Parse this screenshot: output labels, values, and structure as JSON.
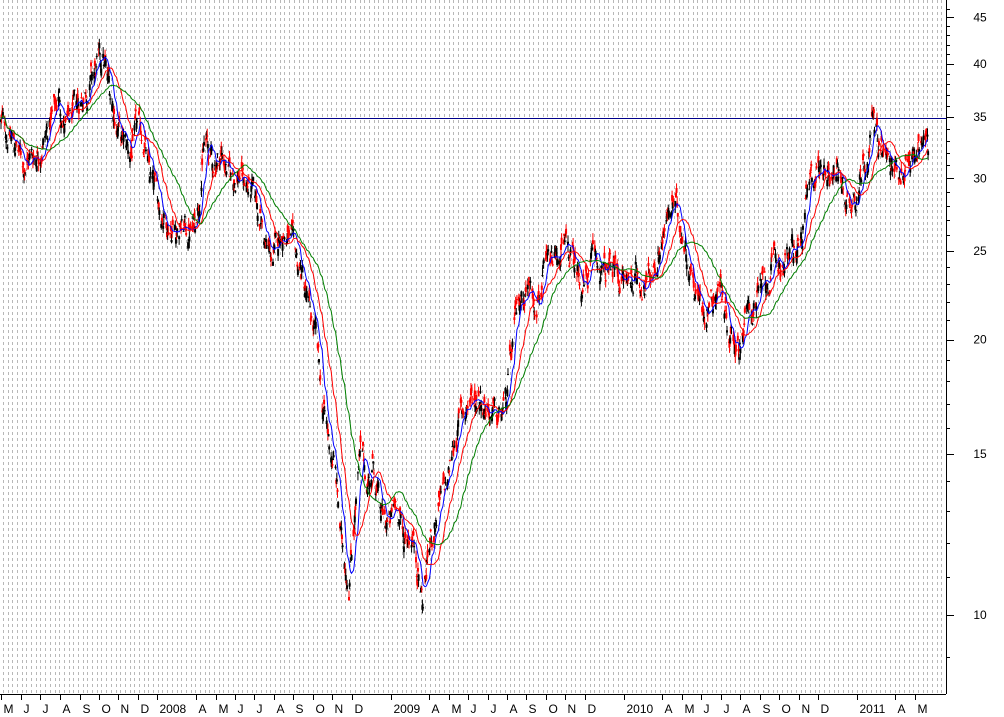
{
  "chart_data": {
    "type": "line",
    "title": "",
    "xlabel": "",
    "ylabel": "",
    "y_scale": "log",
    "ylim": [
      8.2,
      47
    ],
    "yticks": [
      10,
      15,
      20,
      25,
      30,
      35,
      40,
      45
    ],
    "x_range": [
      "2007-05-01",
      "2011-05-20"
    ],
    "grid": {
      "vertical": "dashed-gray",
      "horizontal": false
    },
    "reference_line": {
      "value": 34.9,
      "color": "#00008b"
    },
    "x_tick_labels": [
      {
        "date": "2007-05-01",
        "label": "M"
      },
      {
        "date": "2007-06-01",
        "label": "J"
      },
      {
        "date": "2007-07-01",
        "label": "J"
      },
      {
        "date": "2007-08-01",
        "label": "A"
      },
      {
        "date": "2007-09-01",
        "label": "S"
      },
      {
        "date": "2007-10-01",
        "label": "O"
      },
      {
        "date": "2007-11-01",
        "label": "N"
      },
      {
        "date": "2007-12-01",
        "label": "D"
      },
      {
        "date": "2008-01-01",
        "label": "2008"
      },
      {
        "date": "2008-03-01",
        "label": "A"
      },
      {
        "date": "2008-04-01",
        "label": "M"
      },
      {
        "date": "2008-05-01",
        "label": "J"
      },
      {
        "date": "2008-06-01",
        "label": "J"
      },
      {
        "date": "2008-07-01",
        "label": "A"
      },
      {
        "date": "2008-08-01",
        "label": "S"
      },
      {
        "date": "2008-09-01",
        "label": "O"
      },
      {
        "date": "2008-10-01",
        "label": "N"
      },
      {
        "date": "2008-11-01",
        "label": "D"
      },
      {
        "date": "2009-01-01",
        "label": "2009"
      },
      {
        "date": "2009-03-01",
        "label": "A"
      },
      {
        "date": "2009-04-01",
        "label": "M"
      },
      {
        "date": "2009-05-01",
        "label": "J"
      },
      {
        "date": "2009-06-01",
        "label": "J"
      },
      {
        "date": "2009-07-01",
        "label": "A"
      },
      {
        "date": "2009-08-01",
        "label": "S"
      },
      {
        "date": "2009-09-01",
        "label": "O"
      },
      {
        "date": "2009-10-01",
        "label": "N"
      },
      {
        "date": "2009-11-01",
        "label": "D"
      },
      {
        "date": "2010-01-01",
        "label": "2010"
      },
      {
        "date": "2010-03-01",
        "label": "A"
      },
      {
        "date": "2010-04-01",
        "label": "M"
      },
      {
        "date": "2010-05-01",
        "label": "J"
      },
      {
        "date": "2010-06-01",
        "label": "J"
      },
      {
        "date": "2010-07-01",
        "label": "A"
      },
      {
        "date": "2010-08-01",
        "label": "S"
      },
      {
        "date": "2010-09-01",
        "label": "O"
      },
      {
        "date": "2010-10-01",
        "label": "N"
      },
      {
        "date": "2010-11-01",
        "label": "D"
      },
      {
        "date": "2011-01-01",
        "label": "2011"
      },
      {
        "date": "2011-03-01",
        "label": "A"
      },
      {
        "date": "2011-04-01",
        "label": "M"
      }
    ],
    "price_path": [
      [
        "2007-05-01",
        34.5
      ],
      [
        "2007-05-20",
        33.0
      ],
      [
        "2007-06-05",
        31.2
      ],
      [
        "2007-06-25",
        32.0
      ],
      [
        "2007-07-15",
        34.0
      ],
      [
        "2007-07-31",
        37.0
      ],
      [
        "2007-08-10",
        33.8
      ],
      [
        "2007-08-25",
        35.5
      ],
      [
        "2007-09-10",
        37.5
      ],
      [
        "2007-09-25",
        39.0
      ],
      [
        "2007-10-08",
        40.5
      ],
      [
        "2007-10-20",
        37.0
      ],
      [
        "2007-11-05",
        33.0
      ],
      [
        "2007-11-20",
        32.0
      ],
      [
        "2007-12-01",
        34.0
      ],
      [
        "2007-12-12",
        33.0
      ],
      [
        "2007-12-20",
        30.0
      ],
      [
        "2008-01-05",
        28.0
      ],
      [
        "2008-01-20",
        26.8
      ],
      [
        "2008-02-10",
        26.5
      ],
      [
        "2008-02-25",
        26.2
      ],
      [
        "2008-03-05",
        28.5
      ],
      [
        "2008-03-15",
        33.0
      ],
      [
        "2008-03-28",
        31.0
      ],
      [
        "2008-04-10",
        32.0
      ],
      [
        "2008-04-25",
        30.0
      ],
      [
        "2008-05-10",
        30.5
      ],
      [
        "2008-05-25",
        29.0
      ],
      [
        "2008-06-10",
        27.5
      ],
      [
        "2008-06-20",
        25.0
      ],
      [
        "2008-07-01",
        24.5
      ],
      [
        "2008-07-15",
        26.5
      ],
      [
        "2008-07-31",
        25.0
      ],
      [
        "2008-08-15",
        23.5
      ],
      [
        "2008-08-25",
        21.5
      ],
      [
        "2008-09-05",
        20.0
      ],
      [
        "2008-09-15",
        17.0
      ],
      [
        "2008-09-25",
        15.5
      ],
      [
        "2008-10-05",
        14.5
      ],
      [
        "2008-10-15",
        12.0
      ],
      [
        "2008-10-27",
        11.0
      ],
      [
        "2008-11-05",
        13.0
      ],
      [
        "2008-11-15",
        15.0
      ],
      [
        "2008-11-25",
        14.0
      ],
      [
        "2008-12-05",
        14.6
      ],
      [
        "2008-12-15",
        12.8
      ],
      [
        "2008-12-31",
        12.5
      ],
      [
        "2009-01-10",
        13.5
      ],
      [
        "2009-01-20",
        12.0
      ],
      [
        "2009-02-01",
        12.5
      ],
      [
        "2009-02-10",
        11.5
      ],
      [
        "2009-02-20",
        10.3
      ],
      [
        "2009-03-01",
        11.8
      ],
      [
        "2009-03-15",
        13.0
      ],
      [
        "2009-03-31",
        14.0
      ],
      [
        "2009-04-10",
        15.5
      ],
      [
        "2009-04-20",
        16.5
      ],
      [
        "2009-05-05",
        17.2
      ],
      [
        "2009-05-20",
        17.5
      ],
      [
        "2009-06-01",
        17.0
      ],
      [
        "2009-06-15",
        16.2
      ],
      [
        "2009-06-30",
        17.0
      ],
      [
        "2009-07-10",
        19.5
      ],
      [
        "2009-07-20",
        22.0
      ],
      [
        "2009-08-01",
        23.0
      ],
      [
        "2009-08-15",
        22.5
      ],
      [
        "2009-08-31",
        23.5
      ],
      [
        "2009-09-15",
        24.5
      ],
      [
        "2009-10-01",
        25.0
      ],
      [
        "2009-10-15",
        24.2
      ],
      [
        "2009-10-31",
        23.0
      ],
      [
        "2009-11-15",
        24.5
      ],
      [
        "2009-12-01",
        23.5
      ],
      [
        "2009-12-15",
        24.0
      ],
      [
        "2010-01-05",
        23.0
      ],
      [
        "2010-01-20",
        23.8
      ],
      [
        "2010-02-05",
        22.8
      ],
      [
        "2010-02-20",
        24.5
      ],
      [
        "2010-03-05",
        26.5
      ],
      [
        "2010-03-20",
        28.0
      ],
      [
        "2010-04-05",
        26.0
      ],
      [
        "2010-04-15",
        24.0
      ],
      [
        "2010-04-25",
        22.5
      ],
      [
        "2010-05-05",
        21.5
      ],
      [
        "2010-05-20",
        22.5
      ],
      [
        "2010-06-01",
        23.0
      ],
      [
        "2010-06-15",
        20.5
      ],
      [
        "2010-06-28",
        19.8
      ],
      [
        "2010-07-10",
        21.0
      ],
      [
        "2010-07-25",
        22.0
      ],
      [
        "2010-08-10",
        23.0
      ],
      [
        "2010-08-25",
        24.0
      ],
      [
        "2010-09-10",
        24.5
      ],
      [
        "2010-09-25",
        25.0
      ],
      [
        "2010-10-05",
        25.5
      ],
      [
        "2010-10-15",
        28.5
      ],
      [
        "2010-11-01",
        31.0
      ],
      [
        "2010-11-15",
        31.0
      ],
      [
        "2010-11-30",
        30.5
      ],
      [
        "2010-12-10",
        29.5
      ],
      [
        "2010-12-20",
        28.0
      ],
      [
        "2011-01-05",
        30.0
      ],
      [
        "2011-01-15",
        32.0
      ],
      [
        "2011-01-25",
        34.5
      ],
      [
        "2011-02-05",
        33.0
      ],
      [
        "2011-02-15",
        31.5
      ],
      [
        "2011-02-25",
        30.5
      ],
      [
        "2011-03-10",
        31.0
      ],
      [
        "2011-03-25",
        31.5
      ],
      [
        "2011-04-05",
        32.0
      ],
      [
        "2011-04-15",
        34.5
      ],
      [
        "2011-04-25",
        32.0
      ]
    ],
    "series": [
      {
        "style": "candles",
        "color_up": "#000000",
        "color_down": "#ff0000"
      },
      {
        "style": "moving-average",
        "color": "#0000ff",
        "period": 10
      },
      {
        "style": "moving-average",
        "color": "#ff0000",
        "period": 25
      },
      {
        "style": "moving-average",
        "color": "#008000",
        "period": 50
      }
    ]
  }
}
